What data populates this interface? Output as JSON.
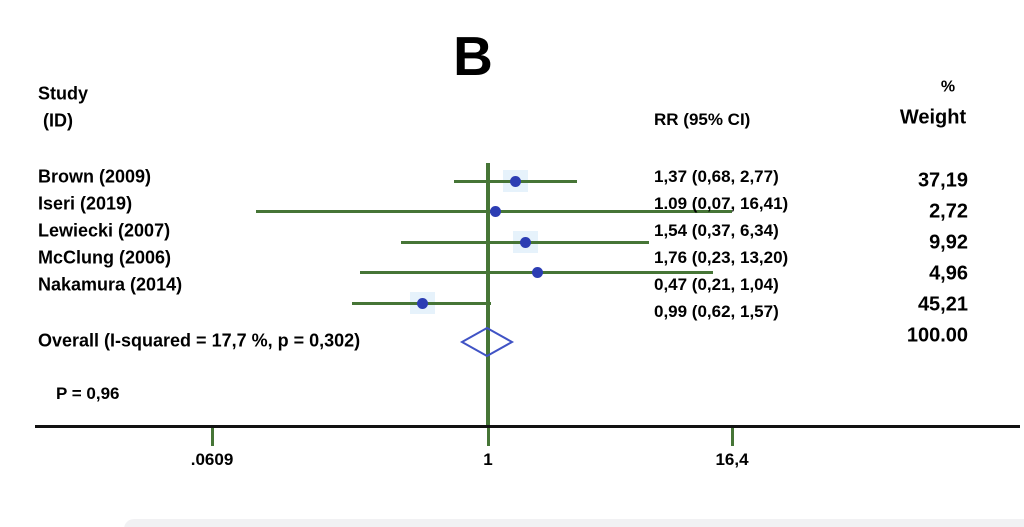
{
  "title": "B",
  "columns": {
    "study_header_line1": "Study",
    "study_header_line2": " (ID)",
    "rr_header": "RR (95% CI)",
    "weight_header_line1": "%",
    "weight_header_line2": "Weight"
  },
  "chart_data": {
    "type": "forest",
    "x_axis": {
      "scale": "log",
      "ticks": [
        {
          "label": ".0609",
          "value": 0.0609
        },
        {
          "label": "1",
          "value": 1
        },
        {
          "label": "16,4",
          "value": 16.4
        }
      ],
      "xlim": [
        0.0609,
        16.4
      ]
    },
    "studies": [
      {
        "label": "Brown (2009)",
        "rr": 1.37,
        "ci_low": 0.68,
        "ci_high": 2.77,
        "rr_text": "1,37 (0,68, 2,77)",
        "weight": 37.19,
        "weight_text": "37,19"
      },
      {
        "label": "Iseri (2019)",
        "rr": 1.09,
        "ci_low": 0.07,
        "ci_high": 16.41,
        "rr_text": "1.09 (0,07, 16,41)",
        "weight": 2.72,
        "weight_text": "2,72"
      },
      {
        "label": "Lewiecki (2007)",
        "rr": 1.54,
        "ci_low": 0.37,
        "ci_high": 6.34,
        "rr_text": "1,54 (0,37, 6,34)",
        "weight": 9.92,
        "weight_text": "9,92"
      },
      {
        "label": "McClung (2006)",
        "rr": 1.76,
        "ci_low": 0.23,
        "ci_high": 13.2,
        "rr_text": "1,76 (0,23, 13,20)",
        "weight": 4.96,
        "weight_text": "4,96"
      },
      {
        "label": "Nakamura (2014)",
        "rr": 0.47,
        "ci_low": 0.21,
        "ci_high": 1.04,
        "rr_text": "0,47 (0,21, 1,04)",
        "weight": 45.21,
        "weight_text": "45,21"
      }
    ],
    "overall": {
      "label": "Overall (I-squared = 17,7 %, p = 0,302)",
      "rr": 0.99,
      "ci_low": 0.62,
      "ci_high": 1.57,
      "rr_text": "0,99 (0,62, 1,57)",
      "weight_text": "100.00"
    },
    "p_label": "P = 0,96"
  },
  "colors": {
    "line_green": "#467536",
    "dot_blue": "#2c3db3",
    "diamond_blue": "#4053c5",
    "box_blue": "#e6f2fb",
    "axis_black": "#121212",
    "text": "#000000"
  }
}
